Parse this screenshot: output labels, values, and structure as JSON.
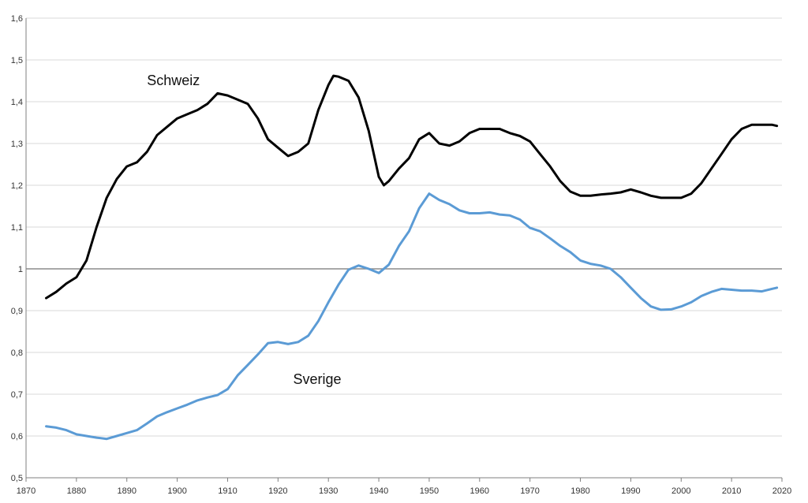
{
  "chart_data": {
    "type": "line",
    "title": "",
    "xlabel": "",
    "ylabel": "",
    "xlim": [
      1870,
      2020
    ],
    "ylim": [
      0.5,
      1.6
    ],
    "x_ticks": [
      1870,
      1880,
      1890,
      1900,
      1910,
      1920,
      1930,
      1940,
      1950,
      1960,
      1970,
      1980,
      1990,
      2000,
      2010,
      2020
    ],
    "y_ticks": [
      0.5,
      0.6,
      0.7,
      0.8,
      0.9,
      1.0,
      1.1,
      1.2,
      1.3,
      1.4,
      1.5,
      1.6
    ],
    "y_tick_labels": [
      "0,5",
      "0,6",
      "0,7",
      "0,8",
      "0,9",
      "1",
      "1,1",
      "1,2",
      "1,3",
      "1,4",
      "1,5",
      "1,6"
    ],
    "grid": "horizontal",
    "reference_line": 1.0,
    "legend": "none",
    "series": [
      {
        "name": "Schweiz",
        "color": "#000000",
        "points": [
          [
            1874,
            0.93
          ],
          [
            1876,
            0.945
          ],
          [
            1878,
            0.965
          ],
          [
            1880,
            0.98
          ],
          [
            1882,
            1.02
          ],
          [
            1884,
            1.1
          ],
          [
            1886,
            1.17
          ],
          [
            1888,
            1.215
          ],
          [
            1890,
            1.245
          ],
          [
            1892,
            1.255
          ],
          [
            1894,
            1.28
          ],
          [
            1896,
            1.32
          ],
          [
            1898,
            1.34
          ],
          [
            1900,
            1.36
          ],
          [
            1902,
            1.37
          ],
          [
            1904,
            1.38
          ],
          [
            1906,
            1.395
          ],
          [
            1908,
            1.42
          ],
          [
            1910,
            1.415
          ],
          [
            1912,
            1.405
          ],
          [
            1914,
            1.395
          ],
          [
            1916,
            1.36
          ],
          [
            1918,
            1.31
          ],
          [
            1920,
            1.29
          ],
          [
            1922,
            1.27
          ],
          [
            1924,
            1.28
          ],
          [
            1926,
            1.3
          ],
          [
            1928,
            1.38
          ],
          [
            1930,
            1.44
          ],
          [
            1931,
            1.462
          ],
          [
            1932,
            1.46
          ],
          [
            1934,
            1.45
          ],
          [
            1936,
            1.41
          ],
          [
            1938,
            1.33
          ],
          [
            1940,
            1.22
          ],
          [
            1941,
            1.2
          ],
          [
            1942,
            1.21
          ],
          [
            1944,
            1.24
          ],
          [
            1946,
            1.265
          ],
          [
            1948,
            1.31
          ],
          [
            1950,
            1.325
          ],
          [
            1952,
            1.3
          ],
          [
            1954,
            1.295
          ],
          [
            1956,
            1.305
          ],
          [
            1958,
            1.325
          ],
          [
            1960,
            1.335
          ],
          [
            1962,
            1.335
          ],
          [
            1964,
            1.335
          ],
          [
            1966,
            1.325
          ],
          [
            1968,
            1.318
          ],
          [
            1970,
            1.305
          ],
          [
            1972,
            1.275
          ],
          [
            1974,
            1.245
          ],
          [
            1976,
            1.21
          ],
          [
            1978,
            1.185
          ],
          [
            1980,
            1.175
          ],
          [
            1982,
            1.175
          ],
          [
            1984,
            1.178
          ],
          [
            1986,
            1.18
          ],
          [
            1988,
            1.183
          ],
          [
            1990,
            1.19
          ],
          [
            1992,
            1.183
          ],
          [
            1994,
            1.175
          ],
          [
            1996,
            1.17
          ],
          [
            1998,
            1.17
          ],
          [
            2000,
            1.17
          ],
          [
            2002,
            1.18
          ],
          [
            2004,
            1.205
          ],
          [
            2006,
            1.24
          ],
          [
            2008,
            1.275
          ],
          [
            2010,
            1.31
          ],
          [
            2012,
            1.335
          ],
          [
            2014,
            1.345
          ],
          [
            2016,
            1.345
          ],
          [
            2018,
            1.345
          ],
          [
            2019,
            1.342
          ]
        ]
      },
      {
        "name": "Sverige",
        "color": "#5b9bd5",
        "points": [
          [
            1874,
            0.623
          ],
          [
            1876,
            0.62
          ],
          [
            1878,
            0.614
          ],
          [
            1880,
            0.604
          ],
          [
            1882,
            0.6
          ],
          [
            1884,
            0.596
          ],
          [
            1886,
            0.593
          ],
          [
            1888,
            0.6
          ],
          [
            1890,
            0.607
          ],
          [
            1892,
            0.614
          ],
          [
            1894,
            0.63
          ],
          [
            1896,
            0.647
          ],
          [
            1898,
            0.657
          ],
          [
            1900,
            0.666
          ],
          [
            1902,
            0.675
          ],
          [
            1904,
            0.685
          ],
          [
            1906,
            0.692
          ],
          [
            1908,
            0.698
          ],
          [
            1910,
            0.712
          ],
          [
            1912,
            0.745
          ],
          [
            1914,
            0.77
          ],
          [
            1916,
            0.795
          ],
          [
            1918,
            0.822
          ],
          [
            1920,
            0.825
          ],
          [
            1922,
            0.82
          ],
          [
            1924,
            0.825
          ],
          [
            1926,
            0.84
          ],
          [
            1928,
            0.875
          ],
          [
            1930,
            0.92
          ],
          [
            1932,
            0.962
          ],
          [
            1934,
            0.998
          ],
          [
            1936,
            1.008
          ],
          [
            1938,
            1.0
          ],
          [
            1940,
            0.99
          ],
          [
            1942,
            1.01
          ],
          [
            1944,
            1.055
          ],
          [
            1946,
            1.09
          ],
          [
            1948,
            1.145
          ],
          [
            1950,
            1.18
          ],
          [
            1952,
            1.165
          ],
          [
            1954,
            1.155
          ],
          [
            1956,
            1.14
          ],
          [
            1958,
            1.133
          ],
          [
            1960,
            1.133
          ],
          [
            1962,
            1.135
          ],
          [
            1964,
            1.13
          ],
          [
            1966,
            1.128
          ],
          [
            1968,
            1.118
          ],
          [
            1970,
            1.098
          ],
          [
            1972,
            1.09
          ],
          [
            1974,
            1.073
          ],
          [
            1976,
            1.055
          ],
          [
            1978,
            1.04
          ],
          [
            1980,
            1.02
          ],
          [
            1982,
            1.012
          ],
          [
            1984,
            1.008
          ],
          [
            1986,
            1.0
          ],
          [
            1988,
            0.98
          ],
          [
            1990,
            0.955
          ],
          [
            1992,
            0.93
          ],
          [
            1994,
            0.91
          ],
          [
            1996,
            0.902
          ],
          [
            1998,
            0.903
          ],
          [
            2000,
            0.91
          ],
          [
            2002,
            0.92
          ],
          [
            2004,
            0.935
          ],
          [
            2006,
            0.945
          ],
          [
            2008,
            0.952
          ],
          [
            2010,
            0.95
          ],
          [
            2012,
            0.948
          ],
          [
            2014,
            0.948
          ],
          [
            2016,
            0.946
          ],
          [
            2018,
            0.952
          ],
          [
            2019,
            0.955
          ]
        ]
      }
    ],
    "annotations": [
      {
        "text": "Schweiz",
        "x": 1894,
        "y": 1.44
      },
      {
        "text": "Sverige",
        "x": 1923,
        "y": 0.725
      }
    ]
  }
}
